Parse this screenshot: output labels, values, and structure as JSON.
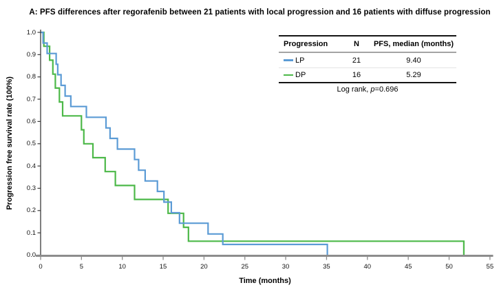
{
  "title": "A: PFS differences after regorafenib between 21 patients with local progression and 16 patients with diffuse progression",
  "y_axis": {
    "label": "Progression free survival rate (100%)"
  },
  "x_axis": {
    "label": "Time (months)"
  },
  "legend_table": {
    "headers": [
      "Progression",
      "N",
      "PFS, median (months)"
    ],
    "rows": [
      {
        "label": "LP",
        "n": "21",
        "median": "9.40"
      },
      {
        "label": "DP",
        "n": "16",
        "median": "5.29"
      }
    ]
  },
  "log_rank": {
    "prefix": "Log rank, ",
    "p": "p",
    "rest": "=0.696"
  },
  "colors": {
    "lp": "#5B9BD5",
    "dp": "#4CB848",
    "x_axis": "#8C8C8C",
    "y_axis": "#3A3A3A"
  },
  "chart_data": {
    "type": "line",
    "subtype": "kaplan-meier-step",
    "title": "A: PFS differences after regorafenib between 21 patients with local progression and 16 patients with diffuse progression",
    "xlabel": "Time (months)",
    "ylabel": "Progression free survival rate (100%)",
    "xlim": [
      0,
      55
    ],
    "ylim": [
      0.0,
      1.0
    ],
    "x_ticks": [
      0,
      5,
      10,
      15,
      20,
      25,
      30,
      35,
      40,
      45,
      50,
      55
    ],
    "y_ticks": [
      0.0,
      0.1,
      0.2,
      0.3,
      0.4,
      0.5,
      0.6,
      0.7,
      0.8,
      0.9,
      1.0
    ],
    "grid": false,
    "legend_position": "top-right-table",
    "annotation": "Log rank, p=0.696",
    "series": [
      {
        "name": "LP",
        "n": 21,
        "median_months": 9.4,
        "color": "#5B9BD5",
        "steps": [
          [
            0,
            1.0
          ],
          [
            0.3,
            0.952
          ],
          [
            0.8,
            0.905
          ],
          [
            1.9,
            0.857
          ],
          [
            2.1,
            0.81
          ],
          [
            2.5,
            0.762
          ],
          [
            3.0,
            0.714
          ],
          [
            3.7,
            0.667
          ],
          [
            5.6,
            0.619
          ],
          [
            8.0,
            0.571
          ],
          [
            8.5,
            0.524
          ],
          [
            9.4,
            0.476
          ],
          [
            11.5,
            0.429
          ],
          [
            12.0,
            0.381
          ],
          [
            12.8,
            0.333
          ],
          [
            14.3,
            0.286
          ],
          [
            15.1,
            0.238
          ],
          [
            16.0,
            0.19
          ],
          [
            17.0,
            0.143
          ],
          [
            20.5,
            0.095
          ],
          [
            22.3,
            0.048
          ],
          [
            35.1,
            0.0
          ]
        ]
      },
      {
        "name": "DP",
        "n": 16,
        "median_months": 5.29,
        "color": "#4CB848",
        "steps": [
          [
            0,
            1.0
          ],
          [
            0.4,
            0.9375
          ],
          [
            1.1,
            0.875
          ],
          [
            1.5,
            0.8125
          ],
          [
            1.8,
            0.75
          ],
          [
            2.3,
            0.6875
          ],
          [
            2.7,
            0.625
          ],
          [
            5.0,
            0.5625
          ],
          [
            5.29,
            0.5
          ],
          [
            6.4,
            0.4375
          ],
          [
            7.9,
            0.375
          ],
          [
            9.15,
            0.3125
          ],
          [
            11.5,
            0.25
          ],
          [
            15.6,
            0.1875
          ],
          [
            17.5,
            0.125
          ],
          [
            18.1,
            0.0625
          ],
          [
            51.8,
            0.0
          ]
        ]
      }
    ]
  }
}
